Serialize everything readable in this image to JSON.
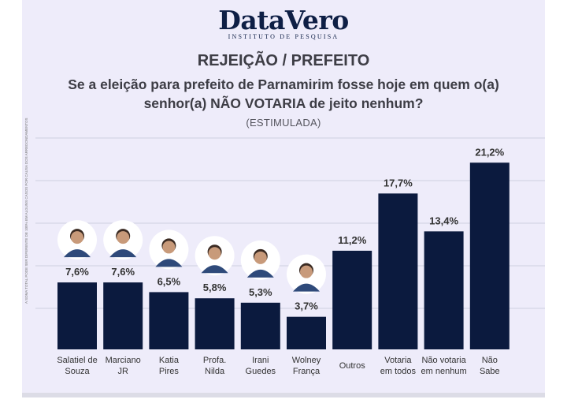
{
  "brand": {
    "name": "DataVero",
    "subtitle": "INSTITUTO DE PESQUISA"
  },
  "header": {
    "title": "REJEIÇÃO / PREFEITO",
    "question_line1": "Se a eleição para prefeito de Parnamirim fosse hoje em quem o(a)",
    "question_line2": "senhor(a) NÃO VOTARIA de jeito nenhum?",
    "stimulated": "(ESTIMULADA)"
  },
  "side_note": "A SOMA TOTAL PODE SER DIFERENTE DE 100% EM ALGUNS CASOS POR CAUSA DOS ARREDONDAMENTOS",
  "colors": {
    "bar": "#0b1a3e",
    "background": "#eeecfa",
    "grid": "#cfcfe0"
  },
  "chart_data": {
    "type": "bar",
    "title": "REJEIÇÃO / PREFEITO",
    "categories": [
      [
        "Salatiel de",
        "Souza"
      ],
      [
        "Marciano",
        "JR"
      ],
      [
        "Katia",
        "Pires"
      ],
      [
        "Profa.",
        "Nilda"
      ],
      [
        "Irani",
        "Guedes"
      ],
      [
        "Wolney",
        "França"
      ],
      [
        "Outros"
      ],
      [
        "Votaria",
        "em todos"
      ],
      [
        "Não votaria",
        "em nenhum"
      ],
      [
        "Não",
        "Sabe"
      ]
    ],
    "values": [
      7.6,
      7.6,
      6.5,
      5.8,
      5.3,
      3.7,
      11.2,
      17.7,
      13.4,
      21.2
    ],
    "value_labels": [
      "7,6%",
      "7,6%",
      "6,5%",
      "5,8%",
      "5,3%",
      "3,7%",
      "11,2%",
      "17,7%",
      "13,4%",
      "21,2%"
    ],
    "has_photo": [
      true,
      true,
      true,
      true,
      true,
      true,
      false,
      false,
      false,
      false
    ],
    "ylim": [
      0,
      24
    ],
    "grid": true,
    "xlabel": "",
    "ylabel": ""
  }
}
